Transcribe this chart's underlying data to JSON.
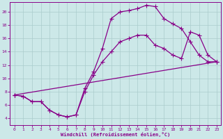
{
  "xlabel": "Windchill (Refroidissement éolien,°C)",
  "bg_color": "#cce8e8",
  "grid_color": "#aacccc",
  "line_color": "#880088",
  "xlim": [
    -0.5,
    23.5
  ],
  "ylim": [
    3.0,
    21.5
  ],
  "yticks": [
    4,
    6,
    8,
    10,
    12,
    14,
    16,
    18,
    20
  ],
  "xticks": [
    0,
    1,
    2,
    3,
    4,
    5,
    6,
    7,
    8,
    9,
    10,
    11,
    12,
    13,
    14,
    15,
    16,
    17,
    18,
    19,
    20,
    21,
    22,
    23
  ],
  "line1_x": [
    0,
    1,
    2,
    3,
    4,
    5,
    6,
    7,
    8,
    9,
    10,
    11,
    12,
    13,
    14,
    15,
    16,
    17,
    18,
    19,
    20,
    21,
    22,
    23
  ],
  "line1_y": [
    7.5,
    7.3,
    6.5,
    6.5,
    5.2,
    4.5,
    4.2,
    4.5,
    8.5,
    11.0,
    14.5,
    19.0,
    20.0,
    20.2,
    20.5,
    21.0,
    20.8,
    19.0,
    18.2,
    17.5,
    15.5,
    13.5,
    12.5,
    12.5
  ],
  "line2_x": [
    0,
    1,
    2,
    3,
    4,
    5,
    6,
    7,
    8,
    9,
    10,
    11,
    12,
    13,
    14,
    15,
    16,
    17,
    18,
    19,
    20,
    21,
    22,
    23
  ],
  "line2_y": [
    7.5,
    7.3,
    6.5,
    6.5,
    5.2,
    4.5,
    4.2,
    4.5,
    8.0,
    10.5,
    12.5,
    14.0,
    15.5,
    16.0,
    16.5,
    16.5,
    15.0,
    14.5,
    13.5,
    13.0,
    17.0,
    16.5,
    13.5,
    12.5
  ],
  "line3_x": [
    0,
    23
  ],
  "line3_y": [
    7.5,
    12.5
  ]
}
